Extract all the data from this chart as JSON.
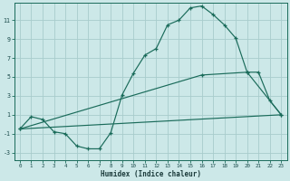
{
  "xlabel": "Humidex (Indice chaleur)",
  "background_color": "#cce8e8",
  "grid_color": "#a8cccc",
  "line_color": "#1a6b5a",
  "xlim": [
    -0.5,
    23.5
  ],
  "ylim": [
    -3.8,
    12.8
  ],
  "xticks": [
    0,
    1,
    2,
    3,
    4,
    5,
    6,
    7,
    8,
    9,
    10,
    11,
    12,
    13,
    14,
    15,
    16,
    17,
    18,
    19,
    20,
    21,
    22,
    23
  ],
  "yticks": [
    -3,
    -1,
    1,
    3,
    5,
    7,
    9,
    11
  ],
  "series1_x": [
    0,
    1,
    2,
    3,
    4,
    5,
    6,
    7,
    8,
    9,
    10,
    11,
    12,
    13,
    14,
    15,
    16,
    17,
    18,
    19,
    20,
    21,
    22,
    23
  ],
  "series1_y": [
    -0.5,
    0.8,
    0.5,
    -0.8,
    -1.0,
    -2.3,
    -2.6,
    -2.6,
    -0.9,
    3.1,
    5.4,
    7.3,
    8.0,
    10.5,
    11.0,
    12.3,
    12.5,
    11.6,
    10.5,
    9.1,
    5.5,
    5.5,
    2.5,
    1.0
  ],
  "series2_x": [
    0,
    23
  ],
  "series2_y": [
    -0.5,
    1.0
  ],
  "series3_x": [
    0,
    16,
    20,
    23
  ],
  "series3_y": [
    -0.5,
    5.2,
    5.5,
    1.0
  ]
}
